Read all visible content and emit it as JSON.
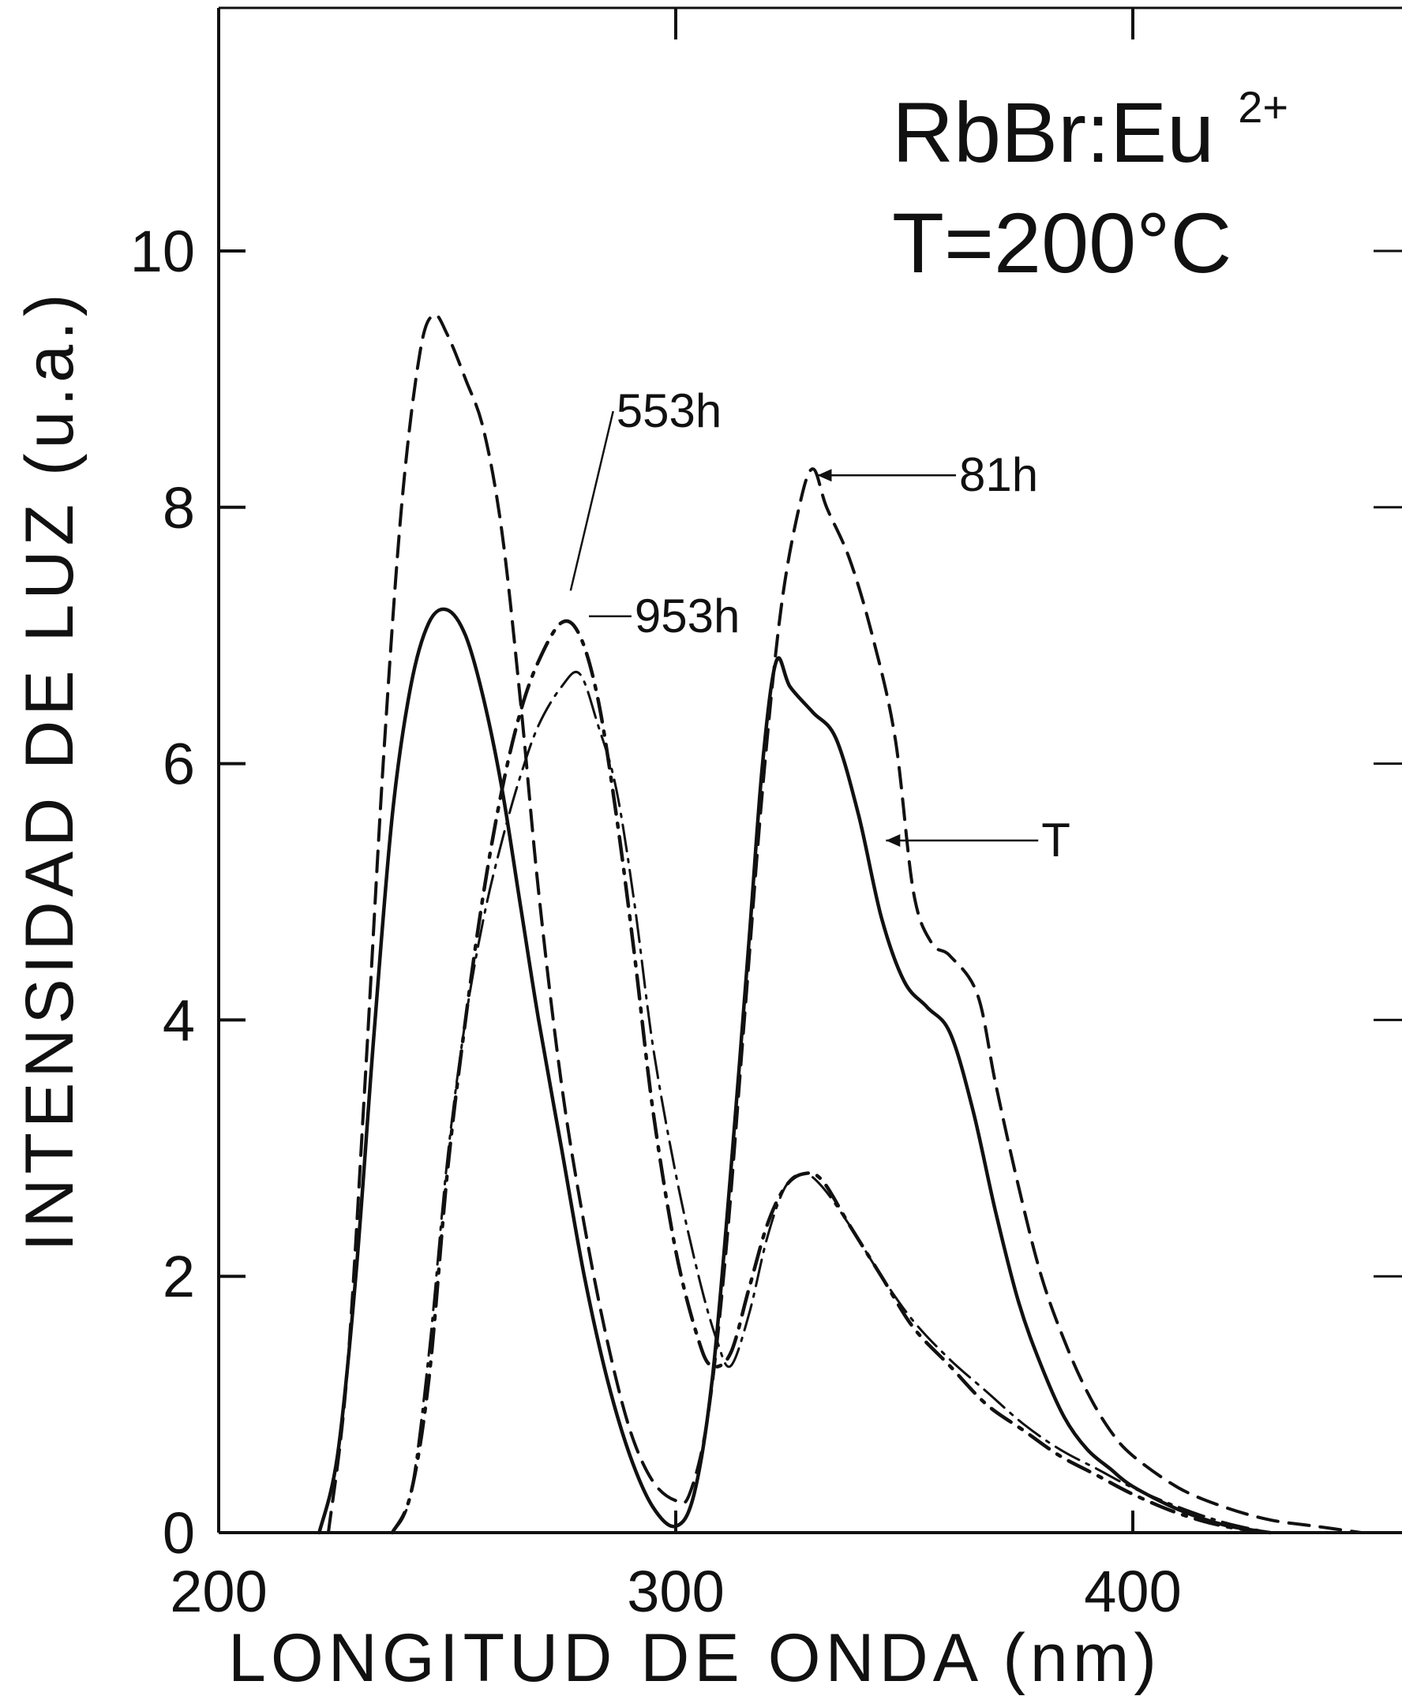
{
  "chart_data": {
    "type": "line",
    "title": "",
    "xlabel": "LONGITUD DE ONDA (nm)",
    "ylabel": "INTENSIDAD DE LUZ (u.a.)",
    "xlim": [
      200,
      450
    ],
    "ylim": [
      0,
      12
    ],
    "x_ticks": [
      200,
      300,
      400
    ],
    "y_ticks": [
      0,
      2,
      4,
      6,
      8,
      10
    ],
    "grid": false,
    "legend": "none",
    "inset_text": {
      "line1_base": "RbBr:Eu",
      "line1_sup": "2+",
      "line2": "T=200°C"
    },
    "series": [
      {
        "name": "T",
        "style": "solid",
        "points": [
          [
            222,
            0
          ],
          [
            226,
            0.6
          ],
          [
            230,
            2.0
          ],
          [
            234,
            3.9
          ],
          [
            238,
            5.6
          ],
          [
            242,
            6.6
          ],
          [
            246,
            7.1
          ],
          [
            250,
            7.2
          ],
          [
            254,
            7.0
          ],
          [
            258,
            6.5
          ],
          [
            262,
            5.8
          ],
          [
            266,
            4.9
          ],
          [
            270,
            4.0
          ],
          [
            275,
            3.0
          ],
          [
            280,
            2.0
          ],
          [
            285,
            1.2
          ],
          [
            290,
            0.6
          ],
          [
            295,
            0.2
          ],
          [
            300,
            0.05
          ],
          [
            304,
            0.3
          ],
          [
            308,
            1.2
          ],
          [
            312,
            2.8
          ],
          [
            316,
            4.6
          ],
          [
            319,
            6.0
          ],
          [
            322,
            6.8
          ],
          [
            325,
            6.6
          ],
          [
            330,
            6.4
          ],
          [
            335,
            6.2
          ],
          [
            340,
            5.6
          ],
          [
            345,
            4.8
          ],
          [
            350,
            4.3
          ],
          [
            355,
            4.1
          ],
          [
            360,
            3.9
          ],
          [
            365,
            3.3
          ],
          [
            370,
            2.5
          ],
          [
            375,
            1.8
          ],
          [
            380,
            1.3
          ],
          [
            385,
            0.9
          ],
          [
            390,
            0.65
          ],
          [
            395,
            0.5
          ],
          [
            400,
            0.36
          ],
          [
            410,
            0.18
          ],
          [
            420,
            0.06
          ],
          [
            430,
            0
          ]
        ]
      },
      {
        "name": "81h",
        "style": "dashed",
        "points": [
          [
            224,
            0
          ],
          [
            228,
            1.2
          ],
          [
            232,
            3.5
          ],
          [
            236,
            6.0
          ],
          [
            240,
            8.0
          ],
          [
            244,
            9.2
          ],
          [
            247,
            9.5
          ],
          [
            250,
            9.35
          ],
          [
            254,
            9.0
          ],
          [
            258,
            8.6
          ],
          [
            262,
            7.8
          ],
          [
            266,
            6.5
          ],
          [
            270,
            5.0
          ],
          [
            275,
            3.5
          ],
          [
            280,
            2.4
          ],
          [
            285,
            1.5
          ],
          [
            290,
            0.8
          ],
          [
            295,
            0.4
          ],
          [
            300,
            0.25
          ],
          [
            303,
            0.3
          ],
          [
            307,
            0.9
          ],
          [
            311,
            2.2
          ],
          [
            315,
            4.0
          ],
          [
            319,
            5.8
          ],
          [
            323,
            7.2
          ],
          [
            327,
            8.0
          ],
          [
            330,
            8.3
          ],
          [
            333,
            8.0
          ],
          [
            338,
            7.6
          ],
          [
            343,
            7.0
          ],
          [
            348,
            6.2
          ],
          [
            352,
            5.0
          ],
          [
            356,
            4.6
          ],
          [
            360,
            4.5
          ],
          [
            366,
            4.2
          ],
          [
            370,
            3.5
          ],
          [
            375,
            2.7
          ],
          [
            380,
            2.0
          ],
          [
            385,
            1.5
          ],
          [
            390,
            1.1
          ],
          [
            395,
            0.8
          ],
          [
            400,
            0.6
          ],
          [
            410,
            0.35
          ],
          [
            420,
            0.2
          ],
          [
            430,
            0.1
          ],
          [
            440,
            0.05
          ],
          [
            450,
            0
          ]
        ]
      },
      {
        "name": "553h",
        "style": "dash-dot",
        "points": [
          [
            238,
            0
          ],
          [
            242,
            0.3
          ],
          [
            246,
            1.2
          ],
          [
            250,
            2.8
          ],
          [
            254,
            4.0
          ],
          [
            258,
            5.0
          ],
          [
            262,
            5.8
          ],
          [
            266,
            6.4
          ],
          [
            270,
            6.8
          ],
          [
            275,
            7.1
          ],
          [
            279,
            7.0
          ],
          [
            283,
            6.5
          ],
          [
            287,
            5.6
          ],
          [
            291,
            4.5
          ],
          [
            295,
            3.3
          ],
          [
            300,
            2.2
          ],
          [
            305,
            1.5
          ],
          [
            308,
            1.3
          ],
          [
            312,
            1.4
          ],
          [
            316,
            1.9
          ],
          [
            320,
            2.4
          ],
          [
            324,
            2.7
          ],
          [
            328,
            2.8
          ],
          [
            332,
            2.75
          ],
          [
            338,
            2.4
          ],
          [
            345,
            2.0
          ],
          [
            352,
            1.6
          ],
          [
            360,
            1.3
          ],
          [
            368,
            1.0
          ],
          [
            376,
            0.8
          ],
          [
            384,
            0.6
          ],
          [
            392,
            0.45
          ],
          [
            400,
            0.3
          ],
          [
            410,
            0.15
          ],
          [
            420,
            0.05
          ],
          [
            430,
            0
          ]
        ]
      },
      {
        "name": "953h",
        "style": "dash-dot-thin",
        "points": [
          [
            238,
            0
          ],
          [
            242,
            0.3
          ],
          [
            246,
            1.4
          ],
          [
            250,
            2.9
          ],
          [
            254,
            4.0
          ],
          [
            258,
            4.8
          ],
          [
            262,
            5.4
          ],
          [
            266,
            5.9
          ],
          [
            270,
            6.3
          ],
          [
            275,
            6.6
          ],
          [
            279,
            6.7
          ],
          [
            283,
            6.3
          ],
          [
            287,
            5.8
          ],
          [
            291,
            4.9
          ],
          [
            295,
            3.8
          ],
          [
            300,
            2.8
          ],
          [
            305,
            2.0
          ],
          [
            309,
            1.5
          ],
          [
            312,
            1.3
          ],
          [
            316,
            1.7
          ],
          [
            320,
            2.3
          ],
          [
            324,
            2.7
          ],
          [
            328,
            2.8
          ],
          [
            332,
            2.7
          ],
          [
            338,
            2.4
          ],
          [
            345,
            2.0
          ],
          [
            352,
            1.65
          ],
          [
            360,
            1.35
          ],
          [
            368,
            1.1
          ],
          [
            376,
            0.85
          ],
          [
            384,
            0.65
          ],
          [
            392,
            0.5
          ],
          [
            400,
            0.35
          ],
          [
            410,
            0.2
          ],
          [
            420,
            0.08
          ],
          [
            430,
            0
          ]
        ]
      }
    ],
    "annotations": [
      {
        "text": "553h",
        "series": "553h"
      },
      {
        "text": "953h",
        "series": "953h"
      },
      {
        "text": "81h",
        "series": "81h"
      },
      {
        "text": "T",
        "series": "T"
      }
    ]
  }
}
